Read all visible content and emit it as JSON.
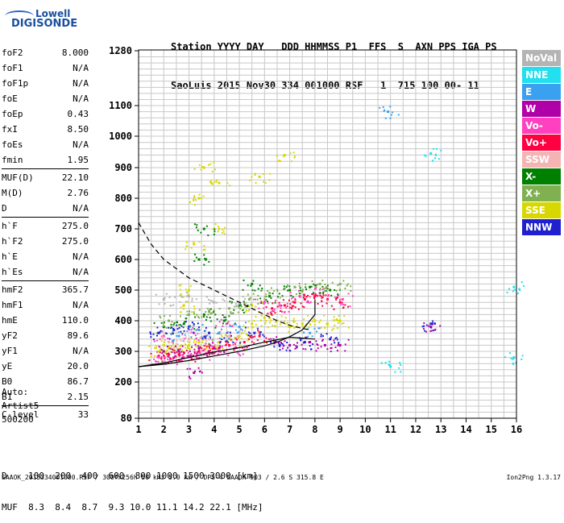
{
  "logo": {
    "line1": "Lowell",
    "line2": "DIGISONDE"
  },
  "header": {
    "line1": "Station YYYY DAY   DDD HHMMSS P1  FFS  S  AXN PPS IGA PS",
    "line2": "SaoLuis 2015 Nov30 334 001000 RSF   1  715 100 00- 11"
  },
  "params": [
    {
      "name": "foF2",
      "value": "8.000"
    },
    {
      "name": "foF1",
      "value": "N/A"
    },
    {
      "name": "foF1p",
      "value": "N/A"
    },
    {
      "name": "foE",
      "value": "N/A"
    },
    {
      "name": "foEp",
      "value": "0.43"
    },
    {
      "name": "fxI",
      "value": "8.50"
    },
    {
      "name": "foEs",
      "value": "N/A"
    },
    {
      "name": "fmin",
      "value": "1.95"
    },
    {
      "sep": true
    },
    {
      "name": "MUF(D)",
      "value": "22.10"
    },
    {
      "name": "M(D)",
      "value": "2.76"
    },
    {
      "name": "D",
      "value": "N/A"
    },
    {
      "sep": true
    },
    {
      "name": "h`F",
      "value": "275.0"
    },
    {
      "name": "h`F2",
      "value": "275.0"
    },
    {
      "name": "h`E",
      "value": "N/A"
    },
    {
      "name": "h`Es",
      "value": "N/A"
    },
    {
      "sep": true
    },
    {
      "name": "hmF2",
      "value": "365.7"
    },
    {
      "name": "hmF1",
      "value": "N/A"
    },
    {
      "name": "hmE",
      "value": "110.0"
    },
    {
      "name": "yF2",
      "value": "89.6"
    },
    {
      "name": "yF1",
      "value": "N/A"
    },
    {
      "name": "yE",
      "value": "20.0"
    },
    {
      "name": "B0",
      "value": "86.7"
    },
    {
      "name": "B1",
      "value": "2.15"
    },
    {
      "sep": true
    },
    {
      "name": "C-level",
      "value": "33"
    }
  ],
  "auto": {
    "line1": "Auto:",
    "line2": "Artist5",
    "line3": "500200"
  },
  "legend": [
    {
      "label": "NoVal",
      "color": "#b4b4b4"
    },
    {
      "label": "NNE",
      "color": "#22e0f0"
    },
    {
      "label": "E",
      "color": "#3aa0f0"
    },
    {
      "label": "W",
      "color": "#b000a8"
    },
    {
      "label": "Vo-",
      "color": "#ff40c0"
    },
    {
      "label": "Vo+",
      "color": "#ff0040"
    },
    {
      "label": "SSW",
      "color": "#f5b4b4"
    },
    {
      "label": "X-",
      "color": "#008000"
    },
    {
      "label": "X+",
      "color": "#80b050"
    },
    {
      "label": "SSE",
      "color": "#d8d800"
    },
    {
      "label": "NNW",
      "color": "#2020d0"
    }
  ],
  "bottom": {
    "d_row": "D    100  200  400  600  800 1000 1500 3000 [km]",
    "muf_row": "MUF  8.3  8.4  8.7  9.3 10.0 11.1 14.2 22.1 [MHz]"
  },
  "footer": {
    "text": "SAAOK_2015334001000.RSF / 300fx256h 50 kHz 5.0 km / DPS-4 SAAOK 903 / 2.6 S 315.8 E",
    "version": "Ion2Png 1.3.17"
  },
  "chart_data": {
    "type": "scatter",
    "title": "",
    "xlabel": "",
    "ylabel": "",
    "xlim": [
      1,
      16
    ],
    "x_ticks": [
      1,
      2,
      3,
      4,
      5,
      6,
      7,
      8,
      9,
      10,
      11,
      12,
      13,
      14,
      15,
      16
    ],
    "y_ticks": [
      80,
      200,
      300,
      400,
      500,
      600,
      700,
      800,
      900,
      1000,
      1100,
      1280
    ],
    "y_scale": "ionogram virtual height (km), non-uniform",
    "grid": true,
    "series": [
      {
        "name": "SSE",
        "points": [
          [
            1.8,
            300
          ],
          [
            2.0,
            320
          ],
          [
            2.2,
            310
          ],
          [
            2.6,
            305
          ],
          [
            3.0,
            320
          ],
          [
            3.4,
            330
          ],
          [
            3.8,
            320
          ],
          [
            4.2,
            330
          ],
          [
            4.6,
            340
          ],
          [
            5.0,
            350
          ],
          [
            5.5,
            390
          ],
          [
            6.0,
            410
          ],
          [
            6.5,
            400
          ],
          [
            7.0,
            380
          ],
          [
            7.5,
            390
          ],
          [
            8.0,
            400
          ],
          [
            8.5,
            390
          ],
          [
            9.0,
            400
          ],
          [
            3.2,
            650
          ],
          [
            3.4,
            800
          ],
          [
            3.6,
            900
          ],
          [
            4.0,
            700
          ],
          [
            4.2,
            850
          ],
          [
            3.0,
            500
          ],
          [
            2.8,
            450
          ],
          [
            5.5,
            450
          ],
          [
            5.8,
            870
          ],
          [
            6.8,
            940
          ]
        ]
      },
      {
        "name": "Vo+",
        "points": [
          [
            1.8,
            285
          ],
          [
            2.2,
            290
          ],
          [
            2.6,
            290
          ],
          [
            3.0,
            285
          ],
          [
            3.4,
            300
          ],
          [
            3.8,
            300
          ],
          [
            4.2,
            310
          ],
          [
            4.6,
            320
          ],
          [
            5.2,
            330
          ],
          [
            5.8,
            350
          ],
          [
            6.3,
            440
          ],
          [
            6.8,
            450
          ],
          [
            7.2,
            460
          ],
          [
            7.6,
            470
          ],
          [
            8.0,
            480
          ],
          [
            8.5,
            470
          ],
          [
            9.0,
            460
          ]
        ]
      },
      {
        "name": "Vo-",
        "points": [
          [
            1.8,
            280
          ],
          [
            2.4,
            280
          ],
          [
            3.0,
            285
          ],
          [
            3.6,
            290
          ],
          [
            4.2,
            300
          ],
          [
            4.8,
            310
          ],
          [
            6.0,
            460
          ],
          [
            6.6,
            450
          ],
          [
            7.4,
            480
          ],
          [
            8.2,
            490
          ],
          [
            9.1,
            470
          ],
          [
            2.0,
            350
          ],
          [
            3.2,
            360
          ],
          [
            4.4,
            400
          ]
        ]
      },
      {
        "name": "W",
        "points": [
          [
            2.0,
            300
          ],
          [
            2.6,
            300
          ],
          [
            3.4,
            310
          ],
          [
            4.0,
            310
          ],
          [
            6.4,
            330
          ],
          [
            7.0,
            320
          ],
          [
            7.8,
            330
          ],
          [
            8.4,
            320
          ],
          [
            9.0,
            320
          ],
          [
            12.6,
            380
          ],
          [
            3.2,
            230
          ]
        ]
      },
      {
        "name": "X-",
        "points": [
          [
            2.0,
            380
          ],
          [
            2.8,
            390
          ],
          [
            3.6,
            420
          ],
          [
            4.4,
            400
          ],
          [
            5.0,
            450
          ],
          [
            5.5,
            520
          ],
          [
            6.2,
            480
          ],
          [
            7.0,
            500
          ],
          [
            7.8,
            510
          ],
          [
            8.6,
            500
          ],
          [
            3.4,
            600
          ],
          [
            3.6,
            700
          ]
        ]
      },
      {
        "name": "X+",
        "points": [
          [
            2.2,
            400
          ],
          [
            3.0,
            420
          ],
          [
            3.8,
            430
          ],
          [
            4.6,
            440
          ],
          [
            5.4,
            470
          ],
          [
            6.2,
            490
          ],
          [
            7.2,
            510
          ],
          [
            8.2,
            520
          ],
          [
            9.0,
            520
          ]
        ]
      },
      {
        "name": "NNW",
        "points": [
          [
            1.8,
            360
          ],
          [
            2.4,
            370
          ],
          [
            3.0,
            380
          ],
          [
            3.8,
            360
          ],
          [
            4.6,
            350
          ],
          [
            5.6,
            360
          ],
          [
            6.6,
            320
          ],
          [
            7.6,
            330
          ],
          [
            8.6,
            340
          ],
          [
            12.6,
            390
          ]
        ]
      },
      {
        "name": "E",
        "points": [
          [
            2.6,
            350
          ],
          [
            3.4,
            370
          ],
          [
            4.2,
            360
          ],
          [
            5.0,
            380
          ],
          [
            7.8,
            360
          ],
          [
            10.9,
            1080
          ]
        ]
      },
      {
        "name": "NNE",
        "points": [
          [
            12.6,
            945
          ],
          [
            15.9,
            510
          ],
          [
            15.9,
            280
          ],
          [
            11.0,
            250
          ]
        ]
      },
      {
        "name": "SSW",
        "points": [
          [
            2.2,
            330
          ],
          [
            3.0,
            340
          ],
          [
            3.8,
            340
          ],
          [
            4.6,
            350
          ]
        ]
      },
      {
        "name": "NoVal",
        "points": [
          [
            2.0,
            470
          ],
          [
            3.0,
            480
          ],
          [
            4.0,
            460
          ],
          [
            5.0,
            460
          ]
        ]
      }
    ],
    "traces": [
      {
        "name": "dashed-X-trace",
        "style": "dashed",
        "points": [
          [
            1,
            720
          ],
          [
            1.5,
            650
          ],
          [
            2.0,
            600
          ],
          [
            2.5,
            570
          ],
          [
            3.0,
            540
          ],
          [
            3.5,
            520
          ],
          [
            4.0,
            500
          ],
          [
            4.5,
            480
          ],
          [
            5.0,
            460
          ],
          [
            5.5,
            440
          ],
          [
            6.0,
            420
          ],
          [
            6.5,
            400
          ],
          [
            7.0,
            385
          ],
          [
            7.5,
            375
          ],
          [
            7.8,
            370
          ]
        ]
      },
      {
        "name": "profile-O-trace",
        "style": "solid",
        "points": [
          [
            1,
            250
          ],
          [
            2,
            258
          ],
          [
            3,
            270
          ],
          [
            4,
            285
          ],
          [
            5,
            300
          ],
          [
            6,
            318
          ],
          [
            6.5,
            330
          ],
          [
            7,
            348
          ],
          [
            7.5,
            370
          ],
          [
            8,
            420
          ],
          [
            8.0,
            470
          ]
        ]
      },
      {
        "name": "profile-lower-trace",
        "style": "solid",
        "points": [
          [
            1,
            250
          ],
          [
            2,
            262
          ],
          [
            3,
            280
          ],
          [
            4,
            298
          ],
          [
            5,
            312
          ],
          [
            6,
            330
          ],
          [
            7,
            346
          ],
          [
            8,
            340
          ]
        ]
      }
    ]
  }
}
